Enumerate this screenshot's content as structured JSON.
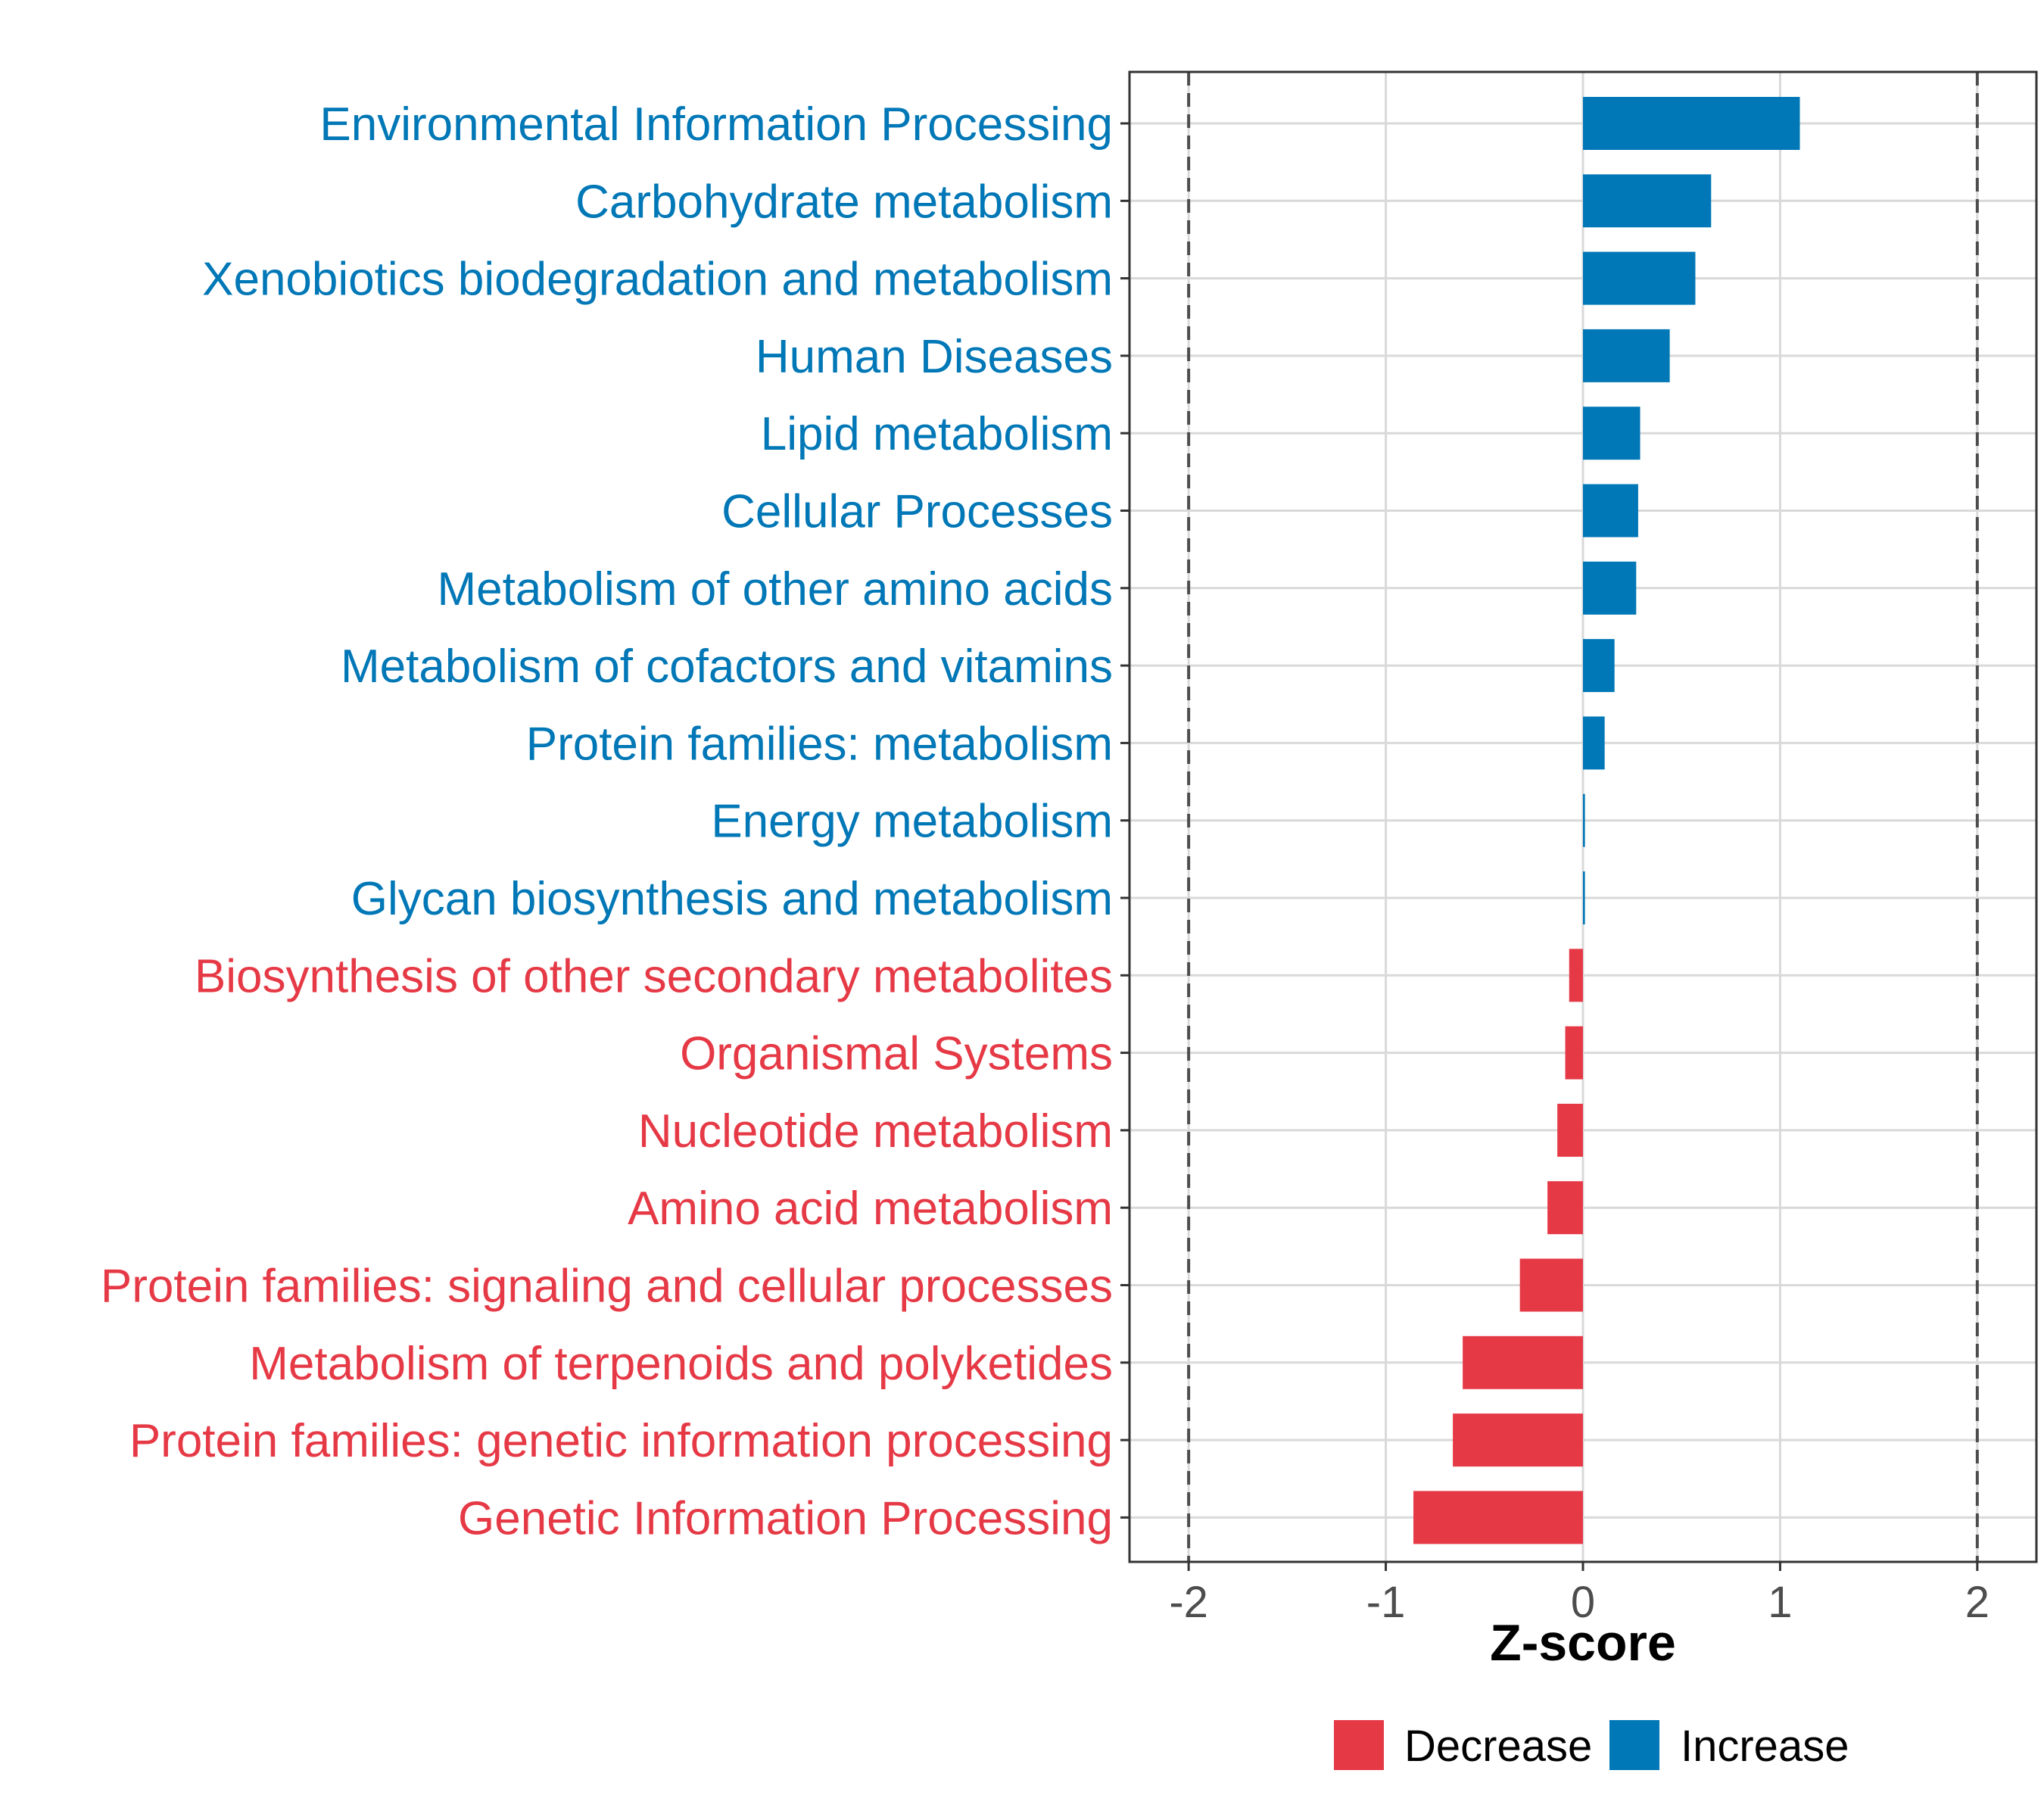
{
  "chart_data": {
    "type": "bar",
    "orientation": "horizontal",
    "title": "",
    "xlabel": "Z-score",
    "ylabel": "",
    "xlim": [
      -2.3,
      2.3
    ],
    "xticks": [
      -2,
      -1,
      0,
      1,
      2
    ],
    "xtick_labels": [
      "-2",
      "-1",
      "0",
      "1",
      "2"
    ],
    "reference_lines": [
      -2,
      2
    ],
    "grid": true,
    "legend": {
      "position": "bottom",
      "entries": [
        {
          "label": "Decrease",
          "color": "#E63946"
        },
        {
          "label": "Increase",
          "color": "#0077B6"
        }
      ]
    },
    "categories": [
      "Environmental Information Processing",
      "Carbohydrate metabolism",
      "Xenobiotics biodegradation and metabolism",
      "Human Diseases",
      "Lipid metabolism",
      "Cellular Processes",
      "Metabolism of other amino acids",
      "Metabolism of cofactors and vitamins",
      "Protein families: metabolism",
      "Energy metabolism",
      "Glycan biosynthesis and metabolism",
      "Biosynthesis of other secondary metabolites",
      "Organismal Systems",
      "Nucleotide metabolism",
      "Amino acid metabolism",
      "Protein families: signaling and cellular processes",
      "Metabolism of terpenoids and polyketides",
      "Protein families: genetic information processing",
      "Genetic Information Processing"
    ],
    "values": [
      1.1,
      0.65,
      0.57,
      0.44,
      0.29,
      0.28,
      0.27,
      0.16,
      0.11,
      0.01,
      0.01,
      -0.07,
      -0.09,
      -0.13,
      -0.18,
      -0.32,
      -0.61,
      -0.66,
      -0.86
    ],
    "groups": [
      "Increase",
      "Increase",
      "Increase",
      "Increase",
      "Increase",
      "Increase",
      "Increase",
      "Increase",
      "Increase",
      "Increase",
      "Increase",
      "Decrease",
      "Decrease",
      "Decrease",
      "Decrease",
      "Decrease",
      "Decrease",
      "Decrease",
      "Decrease"
    ]
  },
  "colors": {
    "Increase": "#0077B6",
    "Decrease": "#E63946",
    "grid": "#D9D9D9",
    "axis": "#333333",
    "tick_text": "#4D4D4D",
    "reference": "#4D4D4D"
  }
}
